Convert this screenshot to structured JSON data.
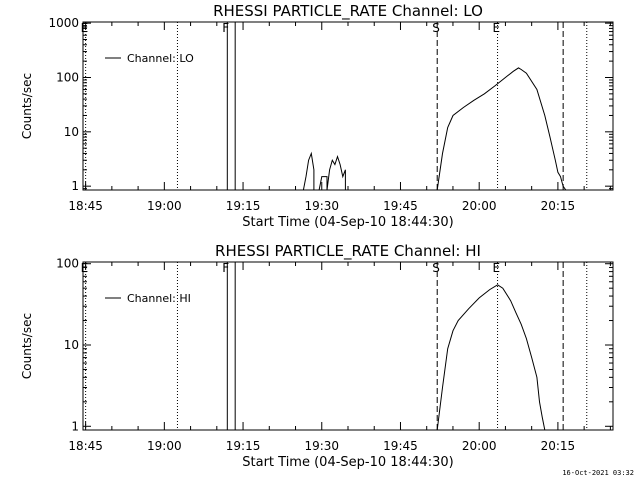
{
  "footer": {
    "timestamp": "16-Oct-2021 03:32"
  },
  "chart_data": [
    {
      "type": "line",
      "title": "RHESSI PARTICLE_RATE Channel: LO",
      "xlabel": "Start Time (04-Sep-10 18:44:30)",
      "ylabel": "Counts/sec",
      "yscale": "log",
      "ylim": [
        0.85,
        1050
      ],
      "xlim": [
        "18:44:30",
        "20:25:30"
      ],
      "yticks": [
        "1",
        "10",
        "100",
        "1000"
      ],
      "xticks": [
        "18:45",
        "19:00",
        "19:15",
        "19:30",
        "19:45",
        "20:00",
        "20:15"
      ],
      "legend": {
        "entries": [
          "Channel: LO"
        ],
        "placement": "top-left"
      },
      "markers": [
        {
          "label": "E",
          "time": "18:45:00",
          "style": "dotted"
        },
        {
          "label": "",
          "time": "19:02:30",
          "style": "dotted"
        },
        {
          "label": "F",
          "time": "19:12:00",
          "style": "solid"
        },
        {
          "label": "",
          "time": "19:13:30",
          "style": "solid"
        },
        {
          "label": "S",
          "time": "19:52:00",
          "style": "dashed"
        },
        {
          "label": "E",
          "time": "20:03:30",
          "style": "dotted"
        },
        {
          "label": "",
          "time": "20:16:00",
          "style": "dashed"
        },
        {
          "label": "",
          "time": "20:20:30",
          "style": "dotted"
        }
      ],
      "series": [
        {
          "name": "Channel: LO",
          "segments": [
            {
              "x": [
                "19:26:30",
                "19:27:00",
                "19:27:30",
                "19:28:00",
                "19:28:30",
                "19:28:30"
              ],
              "y": [
                0.85,
                1.5,
                3.0,
                4.0,
                2.0,
                0.85
              ]
            },
            {
              "x": [
                "19:29:30",
                "19:30:00",
                "19:31:00",
                "19:31:00",
                "19:31:30",
                "19:32:00",
                "19:32:30",
                "19:33:00",
                "19:33:30",
                "19:34:00",
                "19:34:30",
                "19:34:30"
              ],
              "y": [
                0.85,
                1.5,
                1.5,
                0.85,
                2.0,
                3.0,
                2.5,
                3.5,
                2.5,
                1.5,
                2.0,
                0.85
              ]
            },
            {
              "x": [
                "19:52:00",
                "19:53:00",
                "19:54:00",
                "19:55:00",
                "19:57:00",
                "19:59:00",
                "20:01:00",
                "20:03:00",
                "20:05:00",
                "20:06:30",
                "20:07:30",
                "20:08:00",
                "20:09:00",
                "20:11:00",
                "20:12:30",
                "20:13:30",
                "20:14:30",
                "20:15:00",
                "20:15:30",
                "20:16:00",
                "20:16:30"
              ],
              "y": [
                0.85,
                4,
                12,
                20,
                28,
                38,
                50,
                70,
                100,
                130,
                150,
                140,
                120,
                60,
                20,
                8,
                3,
                1.8,
                1.5,
                1.0,
                0.85
              ]
            }
          ]
        }
      ]
    },
    {
      "type": "line",
      "title": "RHESSI PARTICLE_RATE Channel: HI",
      "xlabel": "Start Time (04-Sep-10 18:44:30)",
      "ylabel": "Counts/sec",
      "yscale": "log",
      "ylim": [
        0.9,
        105
      ],
      "xlim": [
        "18:44:30",
        "20:25:30"
      ],
      "yticks": [
        "1",
        "10",
        "100"
      ],
      "xticks": [
        "18:45",
        "19:00",
        "19:15",
        "19:30",
        "19:45",
        "20:00",
        "20:15"
      ],
      "legend": {
        "entries": [
          "Channel: HI"
        ],
        "placement": "top-left"
      },
      "markers": [
        {
          "label": "E",
          "time": "18:45:00",
          "style": "dotted"
        },
        {
          "label": "",
          "time": "19:02:30",
          "style": "dotted"
        },
        {
          "label": "F",
          "time": "19:12:00",
          "style": "solid"
        },
        {
          "label": "",
          "time": "19:13:30",
          "style": "solid"
        },
        {
          "label": "S",
          "time": "19:52:00",
          "style": "dashed"
        },
        {
          "label": "E",
          "time": "20:03:30",
          "style": "dotted"
        },
        {
          "label": "",
          "time": "20:16:00",
          "style": "dashed"
        },
        {
          "label": "",
          "time": "20:20:30",
          "style": "dotted"
        }
      ],
      "series": [
        {
          "name": "Channel: HI",
          "segments": [
            {
              "x": [
                "19:52:00",
                "19:53:00",
                "19:54:00",
                "19:55:00",
                "19:56:00",
                "19:58:00",
                "20:00:00",
                "20:02:00",
                "20:03:30",
                "20:04:30",
                "20:06:00",
                "20:07:00",
                "20:08:00",
                "20:09:00",
                "20:10:00",
                "20:11:00",
                "20:11:30",
                "20:12:00",
                "20:12:30"
              ],
              "y": [
                0.9,
                3,
                9,
                15,
                20,
                28,
                38,
                48,
                55,
                50,
                35,
                25,
                18,
                12,
                7,
                4,
                2,
                1.3,
                0.9
              ]
            }
          ]
        }
      ]
    }
  ]
}
